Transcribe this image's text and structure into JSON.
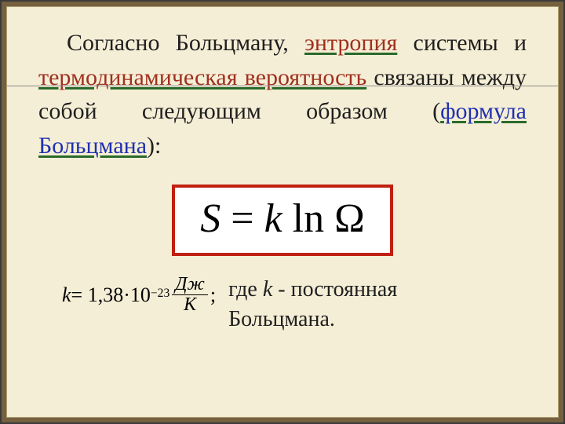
{
  "paragraph": {
    "intro": "Согласно Больцману, ",
    "entropy": "энтропия",
    "middle1": " системы и ",
    "thermo_prob": "термодинамическая вероятность",
    "middle2": " связаны между собой следующим образом (",
    "formula_label": "формула Больцмана",
    "closing": "):"
  },
  "formula": {
    "S": "S",
    "eq": " = ",
    "k": "k",
    "sp": " ",
    "ln": "ln",
    "Omega": " Ω"
  },
  "constant": {
    "k": "k",
    "eq": " = 1,38·10",
    "exp": "−23",
    "sp": " ",
    "unit_num": "Дж",
    "unit_den": "К",
    "semicolon": ";"
  },
  "description": {
    "pre": "где  ",
    "k": "k",
    "post1": "  - постоянная",
    "post2": "Больцмана."
  },
  "colors": {
    "frame_outer": "#756040",
    "paper_bg": "#f5eed6",
    "highlight_text": "#a03020",
    "formula_label": "#2030b0",
    "underline": "#2a6a2a",
    "formula_border": "#c02010",
    "line": "#8a8a8a"
  },
  "typography": {
    "body_fontsize_pt": 22,
    "formula_fontsize_pt": 40,
    "family": "Georgia / Times New Roman serif"
  }
}
